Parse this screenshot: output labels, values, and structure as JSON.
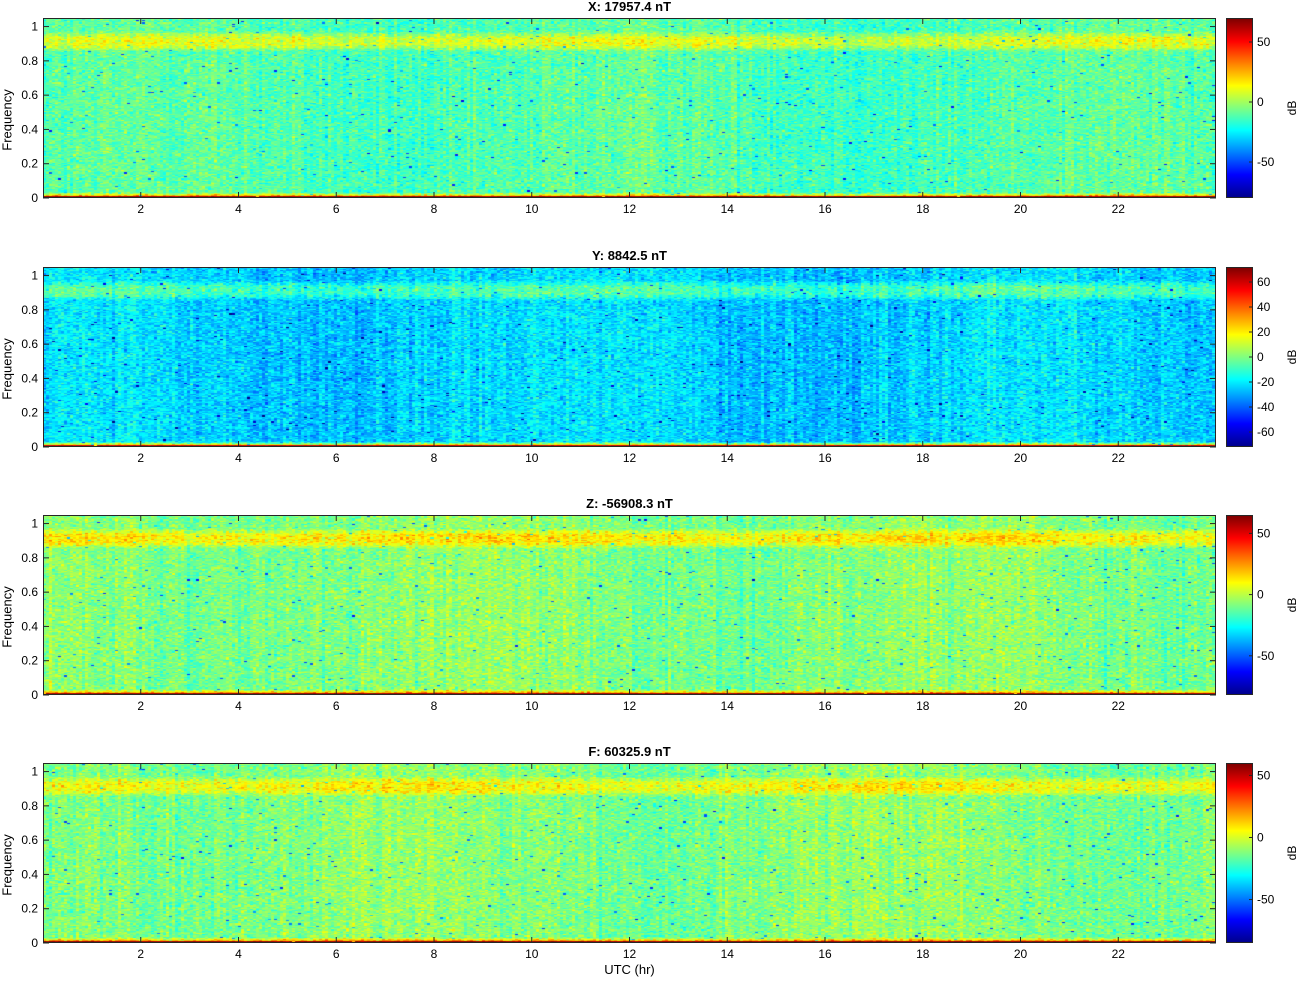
{
  "chart_data": [
    {
      "type": "heatmap",
      "title": "X: 17957.4 nT",
      "ylabel": "Frequency",
      "xlabel": "",
      "x_ticks": [
        2,
        4,
        6,
        8,
        10,
        12,
        14,
        16,
        18,
        20,
        22
      ],
      "xlim": [
        0,
        24
      ],
      "y_ticks": [
        0,
        0.2,
        0.4,
        0.6,
        0.8,
        1
      ],
      "ylim": [
        0,
        1.05
      ],
      "colorbar": {
        "label": "dB",
        "ticks": [
          -50,
          0,
          50
        ],
        "range": [
          -80,
          70
        ],
        "colormap": "jet"
      },
      "levels": {
        "background_db": -12,
        "upper_band_db": 8,
        "upper_band_freq": [
          0.85,
          0.97
        ],
        "low_freq_db": 65
      }
    },
    {
      "type": "heatmap",
      "title": "Y: 8842.5 nT",
      "ylabel": "Frequency",
      "xlabel": "",
      "x_ticks": [
        2,
        4,
        6,
        8,
        10,
        12,
        14,
        16,
        18,
        20,
        22
      ],
      "xlim": [
        0,
        24
      ],
      "y_ticks": [
        0,
        0.2,
        0.4,
        0.6,
        0.8,
        1
      ],
      "ylim": [
        0,
        1.05
      ],
      "colorbar": {
        "label": "dB",
        "ticks": [
          -60,
          -40,
          -20,
          0,
          20,
          40,
          60
        ],
        "range": [
          -72,
          72
        ],
        "colormap": "jet"
      },
      "levels": {
        "background_db": -24,
        "upper_band_db": -8,
        "upper_band_freq": [
          0.85,
          0.97
        ],
        "low_freq_db": 62
      }
    },
    {
      "type": "heatmap",
      "title": "Z: -56908.3 nT",
      "ylabel": "Frequency",
      "xlabel": "",
      "x_ticks": [
        2,
        4,
        6,
        8,
        10,
        12,
        14,
        16,
        18,
        20,
        22
      ],
      "xlim": [
        0,
        24
      ],
      "y_ticks": [
        0,
        0.2,
        0.4,
        0.6,
        0.8,
        1
      ],
      "ylim": [
        0,
        1.05
      ],
      "colorbar": {
        "label": "dB",
        "ticks": [
          -50,
          0,
          50
        ],
        "range": [
          -82,
          65
        ],
        "colormap": "jet"
      },
      "levels": {
        "background_db": -8,
        "upper_band_db": 12,
        "upper_band_freq": [
          0.85,
          0.97
        ],
        "low_freq_db": 60
      }
    },
    {
      "type": "heatmap",
      "title": "F: 60325.9 nT",
      "ylabel": "Frequency",
      "xlabel": "UTC (hr)",
      "x_ticks": [
        2,
        4,
        6,
        8,
        10,
        12,
        14,
        16,
        18,
        20,
        22
      ],
      "xlim": [
        0,
        24
      ],
      "y_ticks": [
        0,
        0.2,
        0.4,
        0.6,
        0.8,
        1
      ],
      "ylim": [
        0,
        1.05
      ],
      "colorbar": {
        "label": "dB",
        "ticks": [
          -50,
          0,
          50
        ],
        "range": [
          -85,
          60
        ],
        "colormap": "jet"
      },
      "levels": {
        "background_db": -12,
        "upper_band_db": 5,
        "upper_band_freq": [
          0.85,
          0.97
        ],
        "low_freq_db": 56
      }
    }
  ],
  "xlabel_bottom": "UTC (hr)"
}
